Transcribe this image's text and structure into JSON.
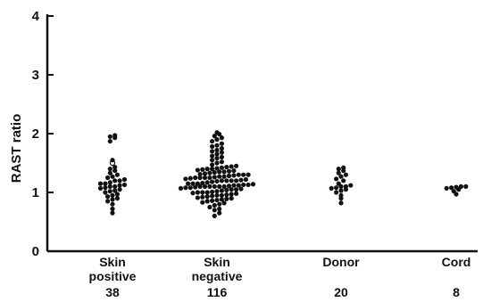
{
  "chart_data": {
    "type": "scatter",
    "subtype": "dot-strip",
    "ylabel": "RAST ratio",
    "ylim": [
      0,
      4
    ],
    "yticks": [
      "0",
      "1",
      "2",
      "3",
      "4"
    ],
    "grid": false,
    "legend": "none",
    "dot_color": "#111111",
    "groups": [
      {
        "label_lines": [
          "Skin",
          "positive"
        ],
        "count": "38",
        "values": [
          0.65,
          0.72,
          0.8,
          0.85,
          0.88,
          0.9,
          0.93,
          0.95,
          0.97,
          1.0,
          1.02,
          1.03,
          1.05,
          1.07,
          1.08,
          1.1,
          1.1,
          1.12,
          1.13,
          1.15,
          1.15,
          1.17,
          1.2,
          1.2,
          1.22,
          1.25,
          1.27,
          1.3,
          1.33,
          1.37,
          1.4,
          1.43,
          1.5,
          1.55,
          1.87,
          1.93,
          1.95,
          1.97
        ],
        "open_values": [
          1.5
        ]
      },
      {
        "label_lines": [
          "Skin",
          "negative"
        ],
        "count": "116",
        "values": [
          0.6,
          0.65,
          0.7,
          0.72,
          0.75,
          0.78,
          0.8,
          0.82,
          0.83,
          0.85,
          0.86,
          0.87,
          0.88,
          0.89,
          0.9,
          0.91,
          0.92,
          0.93,
          0.94,
          0.95,
          0.95,
          0.96,
          0.97,
          0.98,
          0.99,
          1.0,
          1.0,
          1.0,
          1.01,
          1.02,
          1.03,
          1.04,
          1.05,
          1.05,
          1.06,
          1.07,
          1.08,
          1.08,
          1.09,
          1.1,
          1.1,
          1.1,
          1.1,
          1.1,
          1.1,
          1.11,
          1.12,
          1.12,
          1.13,
          1.13,
          1.14,
          1.15,
          1.15,
          1.15,
          1.16,
          1.17,
          1.18,
          1.19,
          1.2,
          1.2,
          1.2,
          1.2,
          1.21,
          1.22,
          1.23,
          1.24,
          1.25,
          1.25,
          1.25,
          1.25,
          1.26,
          1.27,
          1.27,
          1.28,
          1.29,
          1.3,
          1.3,
          1.3,
          1.31,
          1.32,
          1.33,
          1.34,
          1.35,
          1.35,
          1.36,
          1.37,
          1.38,
          1.39,
          1.4,
          1.4,
          1.41,
          1.42,
          1.43,
          1.44,
          1.45,
          1.47,
          1.5,
          1.52,
          1.55,
          1.58,
          1.6,
          1.62,
          1.65,
          1.68,
          1.7,
          1.72,
          1.75,
          1.78,
          1.8,
          1.83,
          1.87,
          1.9,
          1.93,
          1.96,
          1.99,
          2.02
        ],
        "open_values": []
      },
      {
        "label_lines": [
          "Donor"
        ],
        "count": "20",
        "values": [
          0.82,
          0.9,
          0.95,
          1.0,
          1.03,
          1.05,
          1.07,
          1.08,
          1.1,
          1.1,
          1.12,
          1.15,
          1.2,
          1.23,
          1.27,
          1.3,
          1.33,
          1.37,
          1.4,
          1.42
        ],
        "open_values": []
      },
      {
        "label_lines": [
          "Cord"
        ],
        "count": "8",
        "values": [
          0.97,
          1.02,
          1.05,
          1.07,
          1.08,
          1.09,
          1.1,
          1.1
        ],
        "open_values": []
      }
    ]
  }
}
